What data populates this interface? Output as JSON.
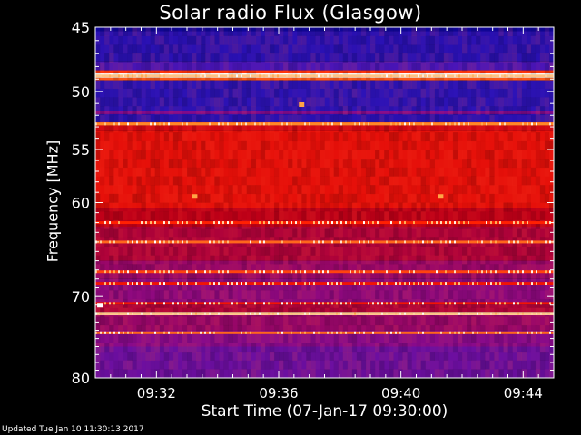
{
  "chart_data": {
    "type": "heatmap",
    "title": "Solar radio Flux (Glasgow)",
    "xlabel": "Start Time (07-Jan-17 09:30:00)",
    "ylabel": "Frequency [MHz]",
    "x_ticks": [
      "09:32",
      "09:36",
      "09:40",
      "09:44"
    ],
    "x_tick_minutes": [
      2,
      6,
      10,
      14
    ],
    "xlim_minutes": [
      0,
      15
    ],
    "y_ticks": [
      45,
      50,
      55,
      60,
      70,
      80
    ],
    "ylim": [
      45,
      80
    ],
    "y_scale": "log",
    "grid": false,
    "colormap": [
      "#00008b",
      "#3a18c4",
      "#8a0a8a",
      "#c00018",
      "#ff1a00",
      "#ff9a30",
      "#ffffff"
    ],
    "bands": [
      {
        "mhz": [
          44.8,
          45.3
        ],
        "intensity": 0.05
      },
      {
        "mhz": [
          45.3,
          47.6
        ],
        "intensity": 0.12
      },
      {
        "mhz": [
          47.6,
          48.3
        ],
        "intensity": 0.2
      },
      {
        "mhz": [
          48.3,
          48.5
        ],
        "intensity": 0.7
      },
      {
        "mhz": [
          48.5,
          48.9
        ],
        "intensity": 1.0
      },
      {
        "mhz": [
          48.9,
          49.1
        ],
        "intensity": 0.75
      },
      {
        "mhz": [
          49.1,
          51.6
        ],
        "intensity": 0.13
      },
      {
        "mhz": [
          51.6,
          51.9
        ],
        "intensity": 0.32
      },
      {
        "mhz": [
          51.9,
          52.6
        ],
        "intensity": 0.12
      },
      {
        "mhz": [
          52.6,
          52.85
        ],
        "intensity": 0.75
      },
      {
        "mhz": [
          52.85,
          53.3
        ],
        "intensity": 0.55
      },
      {
        "mhz": [
          53.3,
          60.5
        ],
        "intensity": 0.6
      },
      {
        "mhz": [
          60.5,
          62.5
        ],
        "intensity": 0.5
      },
      {
        "mhz": [
          62.5,
          66
        ],
        "intensity": 0.45
      },
      {
        "mhz": [
          66,
          68
        ],
        "intensity": 0.38
      },
      {
        "mhz": [
          68,
          71
        ],
        "intensity": 0.35
      },
      {
        "mhz": [
          71,
          71.8
        ],
        "intensity": 0.45
      },
      {
        "mhz": [
          71.8,
          72.2
        ],
        "intensity": 0.95
      },
      {
        "mhz": [
          72.2,
          74
        ],
        "intensity": 0.38
      },
      {
        "mhz": [
          74,
          76
        ],
        "intensity": 0.33
      },
      {
        "mhz": [
          76,
          80.5
        ],
        "intensity": 0.27
      }
    ],
    "rfi_lines": [
      {
        "mhz": 48.75,
        "intensity": 1.0
      },
      {
        "mhz": 52.75,
        "intensity": 0.9
      },
      {
        "mhz": 62.0,
        "intensity": 0.75
      },
      {
        "mhz": 64.0,
        "intensity": 0.85
      },
      {
        "mhz": 67.2,
        "intensity": 0.8
      },
      {
        "mhz": 68.5,
        "intensity": 0.7
      },
      {
        "mhz": 70.8,
        "intensity": 0.7
      },
      {
        "mhz": 72.0,
        "intensity": 1.0
      },
      {
        "mhz": 74.3,
        "intensity": 0.85
      }
    ],
    "spots": [
      {
        "minute": 3.25,
        "mhz": 59.4,
        "intensity": 0.85
      },
      {
        "minute": 11.3,
        "mhz": 59.4,
        "intensity": 0.85
      },
      {
        "minute": 6.75,
        "mhz": 51.1,
        "intensity": 0.85
      },
      {
        "minute": 0.15,
        "mhz": 71.0,
        "intensity": 1.0
      }
    ]
  },
  "footer": "Updated Tue Jan 10 11:30:13 2017"
}
